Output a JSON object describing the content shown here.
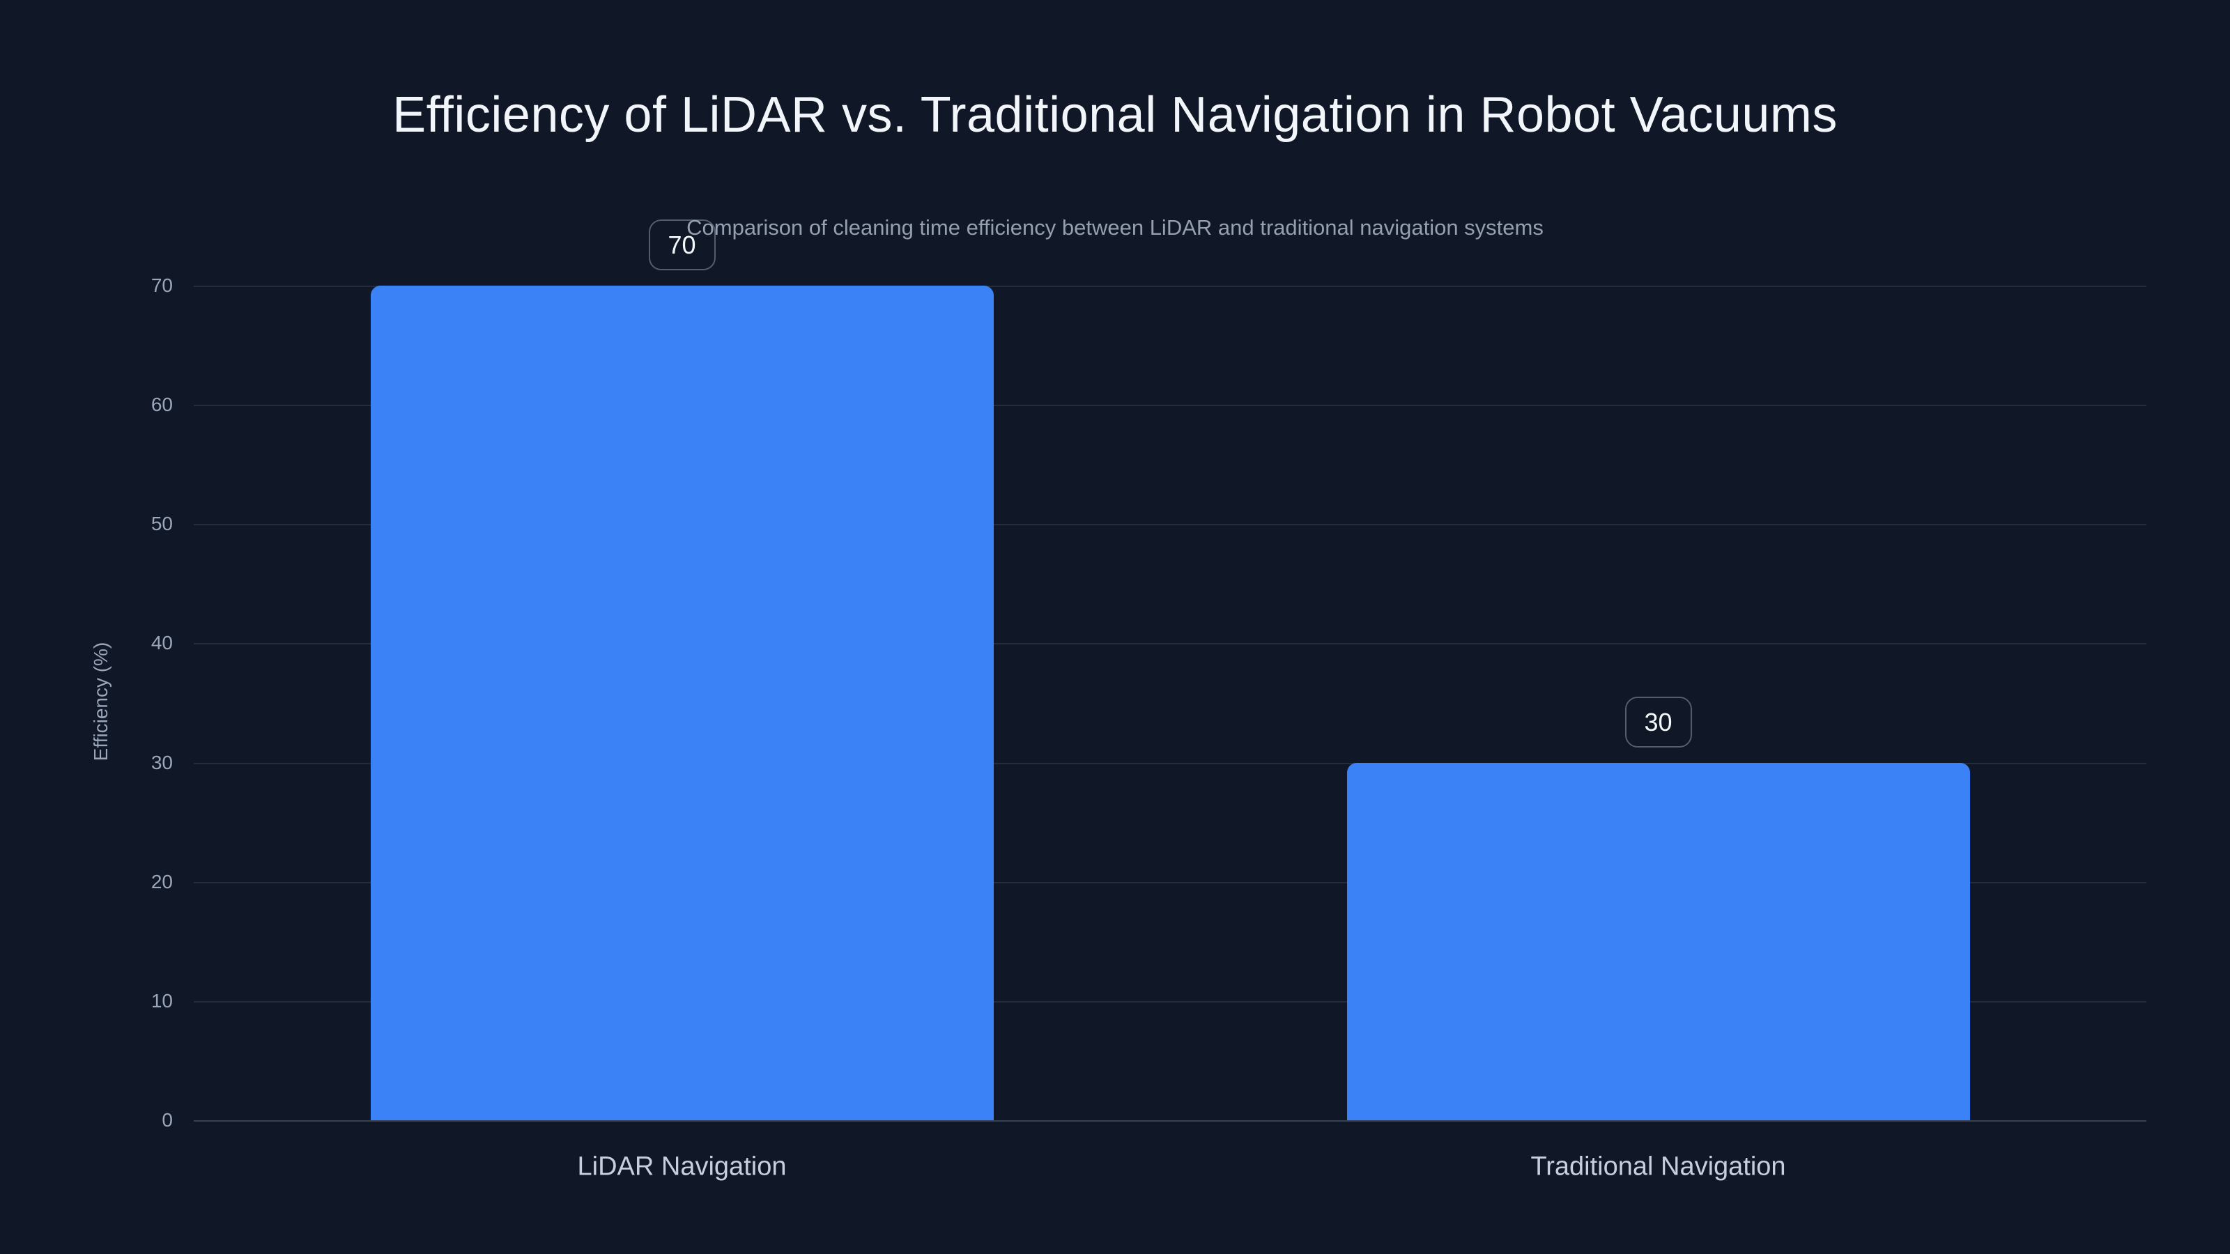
{
  "chart_data": {
    "type": "bar",
    "title": "Efficiency of LiDAR vs. Traditional Navigation in Robot Vacuums",
    "subtitle": "Comparison of cleaning time efficiency between LiDAR and traditional navigation systems",
    "categories": [
      "LiDAR Navigation",
      "Traditional Navigation"
    ],
    "values": [
      70,
      30
    ],
    "data_labels": [
      "70",
      "30"
    ],
    "xlabel": "",
    "ylabel": "Efficiency (%)",
    "ylim": [
      0,
      70
    ],
    "yticks": [
      0,
      10,
      20,
      30,
      40,
      50,
      60,
      70
    ],
    "grid": "horizontal",
    "legend": "none",
    "colors": {
      "background": "#101726",
      "bar": "#3b82f6",
      "title_text": "#f2f6fa",
      "subtitle_text": "#94a0b0",
      "axis_text": "#9aa7bb",
      "category_text": "#c6cfdc"
    }
  }
}
